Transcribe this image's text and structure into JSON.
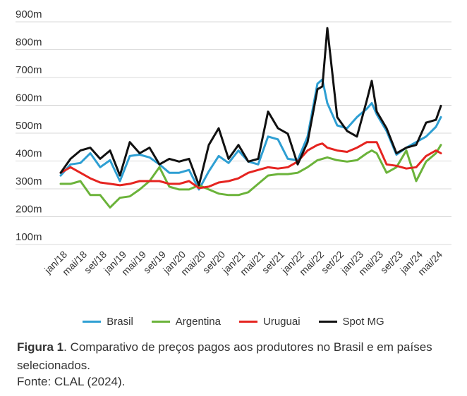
{
  "chart_data": {
    "type": "line",
    "title": "",
    "xlabel": "",
    "ylabel": "",
    "ylim": [
      100,
      900
    ],
    "y_ticks": [
      "100m",
      "200m",
      "300m",
      "400m",
      "500m",
      "600m",
      "700m",
      "800m",
      "900m"
    ],
    "y_tick_values": [
      100,
      200,
      300,
      400,
      500,
      600,
      700,
      800,
      900
    ],
    "grid": "horizontal",
    "legend_position": "bottom",
    "x_tick_labels": [
      "jan/18",
      "mai/18",
      "set/18",
      "jan/19",
      "mai/19",
      "set/19",
      "jan/20",
      "mai/20",
      "set/20",
      "jan/21",
      "mai/21",
      "set/21",
      "jan/22",
      "mai/22",
      "set/22",
      "jan/23",
      "mai/23",
      "set/23",
      "jan/24",
      "mai/24"
    ],
    "x_tick_months": [
      0,
      4,
      8,
      12,
      16,
      20,
      24,
      28,
      32,
      36,
      40,
      44,
      48,
      52,
      56,
      60,
      64,
      68,
      72,
      76
    ],
    "x": [
      0,
      2,
      4,
      6,
      8,
      10,
      12,
      14,
      16,
      18,
      20,
      22,
      24,
      26,
      28,
      30,
      32,
      34,
      36,
      38,
      40,
      42,
      44,
      46,
      48,
      50,
      52,
      53,
      54,
      56,
      58,
      60,
      62,
      63,
      64,
      66,
      68,
      70,
      72,
      74,
      76,
      77
    ],
    "series": [
      {
        "name": "Brasil",
        "color": "#2e9fd3",
        "values": [
          320,
          360,
          365,
          400,
          350,
          375,
          300,
          390,
          395,
          385,
          360,
          330,
          330,
          340,
          270,
          335,
          390,
          365,
          410,
          370,
          360,
          460,
          450,
          380,
          375,
          460,
          650,
          665,
          580,
          500,
          490,
          530,
          560,
          580,
          540,
          480,
          395,
          420,
          440,
          460,
          495,
          530
        ]
      },
      {
        "name": "Argentina",
        "color": "#6bb33a",
        "values": [
          290,
          290,
          300,
          250,
          250,
          205,
          240,
          245,
          270,
          300,
          350,
          280,
          270,
          270,
          285,
          270,
          255,
          250,
          250,
          260,
          290,
          320,
          325,
          325,
          330,
          350,
          375,
          380,
          385,
          375,
          370,
          375,
          400,
          410,
          400,
          330,
          350,
          410,
          300,
          370,
          400,
          430
        ]
      },
      {
        "name": "Uruguai",
        "color": "#e52420",
        "values": [
          330,
          350,
          330,
          310,
          295,
          290,
          285,
          290,
          300,
          300,
          300,
          290,
          290,
          300,
          275,
          280,
          295,
          300,
          310,
          330,
          340,
          350,
          345,
          350,
          370,
          410,
          430,
          435,
          420,
          410,
          405,
          420,
          440,
          440,
          440,
          360,
          355,
          345,
          350,
          390,
          410,
          400
        ]
      },
      {
        "name": "Spot MG",
        "color": "#111111",
        "values": [
          330,
          380,
          410,
          420,
          380,
          410,
          320,
          440,
          400,
          420,
          360,
          380,
          370,
          380,
          285,
          430,
          490,
          380,
          430,
          370,
          380,
          550,
          490,
          470,
          360,
          440,
          630,
          640,
          850,
          530,
          480,
          460,
          590,
          660,
          550,
          490,
          400,
          420,
          430,
          510,
          520,
          570
        ]
      }
    ]
  },
  "caption": {
    "figure_label": "Figura 1",
    "text": ". Comparativo de preços pagos aos produtores no Brasil e em países selecionados.",
    "source": "Fonte: CLAL (2024)."
  }
}
